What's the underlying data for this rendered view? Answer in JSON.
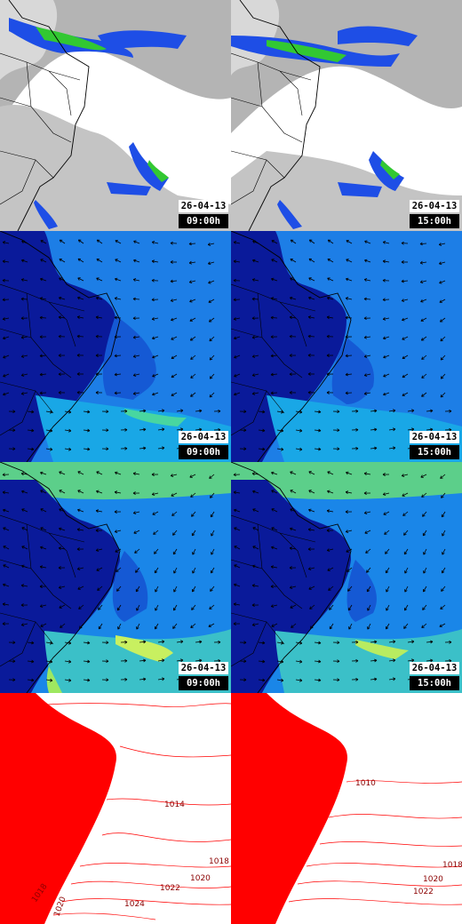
{
  "panels": [
    {
      "id": "sat-0900",
      "kind": "satellite",
      "date": "26-04-13",
      "time": "09:00h"
    },
    {
      "id": "sat-1500",
      "kind": "satellite",
      "date": "26-04-13",
      "time": "15:00h"
    },
    {
      "id": "wind-a-0900",
      "kind": "wind",
      "date": "26-04-13",
      "time": "09:00h"
    },
    {
      "id": "wind-a-1500",
      "kind": "wind",
      "date": "26-04-13",
      "time": "15:00h"
    },
    {
      "id": "wind-b-0900",
      "kind": "wind",
      "date": "26-04-13",
      "time": "09:00h"
    },
    {
      "id": "wind-b-1500",
      "kind": "wind",
      "date": "26-04-13",
      "time": "15:00h"
    },
    {
      "id": "press-0900",
      "kind": "pressure"
    },
    {
      "id": "press-1500",
      "kind": "pressure"
    }
  ],
  "isobar_labels": {
    "left": [
      "1014",
      "1018",
      "1020",
      "1022",
      "1024",
      "1018",
      "1020"
    ],
    "right": [
      "1010",
      "1018",
      "1020",
      "1022"
    ]
  },
  "colors": {
    "cloud_gray": "#b4b4b4",
    "land_blue": "#0a1a9a",
    "ocean_blue": "#1d7ee6",
    "precip_blue": "#1e4ee6",
    "precip_green": "#32c832",
    "jet_green": "#8fe06a",
    "isobar_red": "#ff0000",
    "label_red": "#8b0000"
  }
}
